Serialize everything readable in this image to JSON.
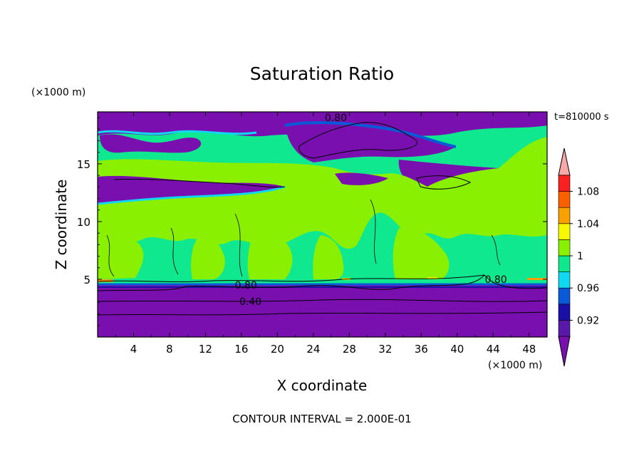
{
  "chart_data": {
    "type": "heatmap",
    "title": "Saturation Ratio",
    "xlabel": "X coordinate",
    "ylabel": "Z coordinate",
    "x_unit": "(×1000 m)",
    "y_unit": "(×1000 m)",
    "time_label": "t=810000 s",
    "footer": "CONTOUR INTERVAL = 2.000E-01",
    "xlim": [
      0,
      50
    ],
    "ylim": [
      0,
      19.5
    ],
    "x_ticks": [
      4,
      8,
      12,
      16,
      20,
      24,
      28,
      32,
      36,
      40,
      44,
      48
    ],
    "y_ticks": [
      5,
      10,
      15
    ],
    "colorbar": {
      "tick_labels": [
        "0.92",
        "0.96",
        "1",
        "1.04",
        "1.08"
      ],
      "tick_values": [
        0.92,
        0.96,
        1.0,
        1.04,
        1.08
      ],
      "bins": [
        {
          "from": null,
          "to": 0.9,
          "color": "#7a0fb0"
        },
        {
          "from": 0.9,
          "to": 0.92,
          "color": "#5818a8"
        },
        {
          "from": 0.92,
          "to": 0.94,
          "color": "#1a10a8"
        },
        {
          "from": 0.94,
          "to": 0.96,
          "color": "#0a5ad8"
        },
        {
          "from": 0.96,
          "to": 0.98,
          "color": "#10d8f0"
        },
        {
          "from": 0.98,
          "to": 1.0,
          "color": "#10e890"
        },
        {
          "from": 1.0,
          "to": 1.02,
          "color": "#88f000"
        },
        {
          "from": 1.02,
          "to": 1.04,
          "color": "#f8f800"
        },
        {
          "from": 1.04,
          "to": 1.06,
          "color": "#f8a000"
        },
        {
          "from": 1.06,
          "to": 1.08,
          "color": "#f86000"
        },
        {
          "from": 1.08,
          "to": 1.1,
          "color": "#f82020"
        },
        {
          "from": 1.1,
          "to": null,
          "color": "#f8a8a8"
        }
      ]
    },
    "contour_labels": [
      {
        "text": "0.80",
        "x": 26.5,
        "y": 19.0
      },
      {
        "text": "0.80",
        "x": 16.5,
        "y": 4.5
      },
      {
        "text": "0.40",
        "x": 17.0,
        "y": 3.1
      },
      {
        "text": "0.80",
        "x": 44.3,
        "y": 5.0
      }
    ]
  }
}
